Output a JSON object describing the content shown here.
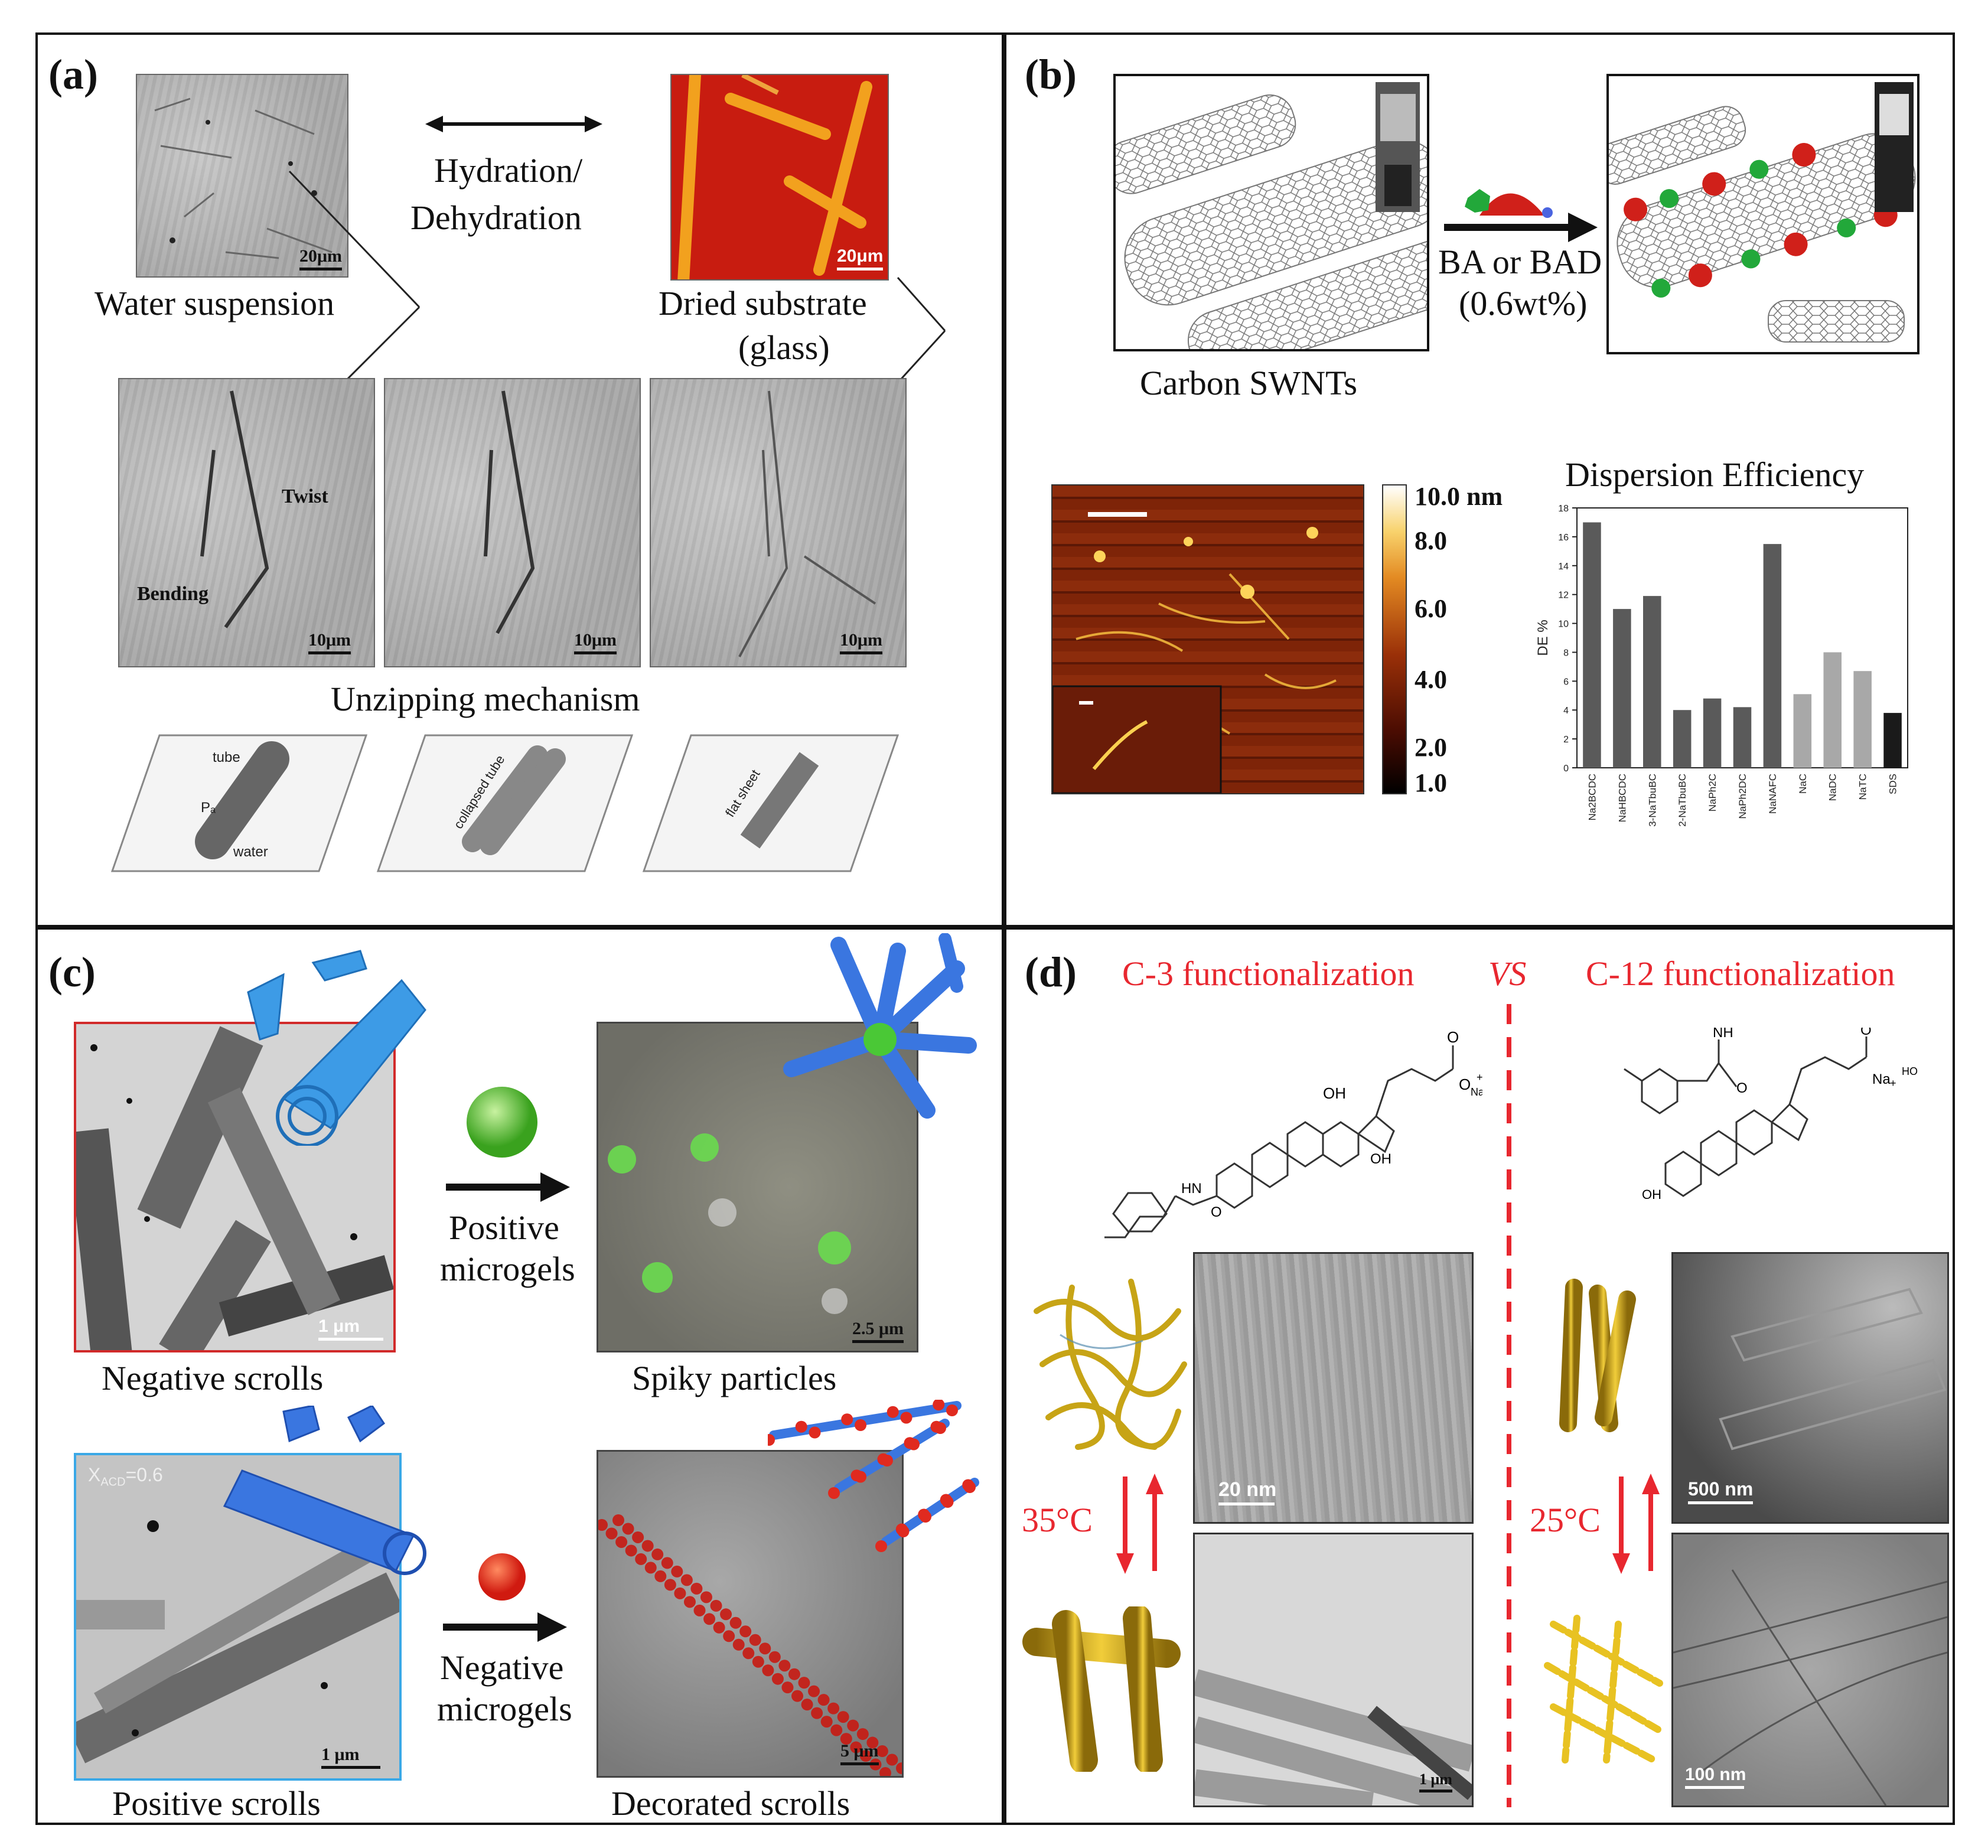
{
  "panel_a": {
    "label": "(a)",
    "hydration_label_line1": "Hydration/",
    "hydration_label_line2": "Dehydration",
    "water_suspension": "Water suspension",
    "dried_line1": "Dried substrate",
    "dried_line2": "(glass)",
    "scale_20um": "20μm",
    "scale_20um_b": "20μm",
    "twist": "Twist",
    "bending": "Bending",
    "scale_10um": "10μm",
    "unzipping": "Unzipping mechanism",
    "schematic_labels": [
      "tube",
      "Pₐ",
      "water",
      "collapsed tube",
      "flat sheet"
    ]
  },
  "panel_b": {
    "label": "(b)",
    "carbon_swnts": "Carbon SWNTs",
    "arrow_line1": "BA or BAD",
    "arrow_line2": "(0.6wt%)",
    "colorbar_ticks": [
      "10.0 nm",
      "8.0",
      "6.0",
      "4.0",
      "2.0",
      "1.0"
    ],
    "colors": {
      "afm_dark": "#2a0a04",
      "afm_mid": "#8a2a0c",
      "afm_bright": "#f6c040"
    }
  },
  "chart_data": {
    "type": "bar",
    "title": "Dispersion Efficiency",
    "ylabel": "DE %",
    "xlabel": "",
    "ylim": [
      0,
      18
    ],
    "yticks": [
      "0",
      "2",
      "4",
      "6",
      "8",
      "10",
      "12",
      "14",
      "16",
      "18"
    ],
    "categories": [
      "Na2BCDC",
      "NaHBCDC",
      "3-NaTbuBC",
      "12-NaTbuBC",
      "NaPh2C",
      "NaPh2DC",
      "NaNAFC",
      "NaC",
      "NaDC",
      "NaTC",
      "SDS"
    ],
    "values": [
      17,
      11,
      11.9,
      4,
      4.8,
      4.2,
      15.5,
      5.1,
      8,
      6.7,
      3.8
    ],
    "bar_colors": [
      "#5a5a5a",
      "#5a5a5a",
      "#5a5a5a",
      "#5a5a5a",
      "#5a5a5a",
      "#5a5a5a",
      "#5a5a5a",
      "#a8a8a8",
      "#a8a8a8",
      "#a8a8a8",
      "#1a1a1a"
    ]
  },
  "panel_c": {
    "label": "(c)",
    "negative_scrolls": "Negative scrolls",
    "spiky_particles": "Spiky particles",
    "positive_scrolls": "Positive scrolls",
    "decorated_scrolls": "Decorated scrolls",
    "positive_microgels_line1": "Positive",
    "positive_microgels_line2": "microgels",
    "negative_microgels_line1": "Negative",
    "negative_microgels_line2": "microgels",
    "scale_1um": "1 μm",
    "scale_25um": "2.5 μm",
    "scale_5um": "5 μm",
    "xacd": "X",
    "xacd_sub": "ACD",
    "xacd_val": "=0.6",
    "colors": {
      "tube_blue": "#3d9be6",
      "green_gel": "#5cc93a",
      "red_gel": "#e02a1f"
    }
  },
  "panel_d": {
    "label": "(d)",
    "c3": "C-3 functionalization",
    "vs": "VS",
    "c12": "C-12 functionalization",
    "temp_c3": "35°C",
    "temp_c12": "25°C",
    "scale_20nm": "20 nm",
    "scale_1um": "1 μm",
    "scale_500nm": "500 nm",
    "scale_100nm": "100 nm",
    "chem_labels": [
      "OH",
      "O",
      "O",
      "Na",
      "+",
      "HN",
      "OH",
      "O",
      "NH",
      "O",
      "O",
      "Na",
      "+",
      "HO",
      "OH"
    ],
    "colors": {
      "accent": "#e8272f",
      "gold": "#d9b21e"
    }
  }
}
